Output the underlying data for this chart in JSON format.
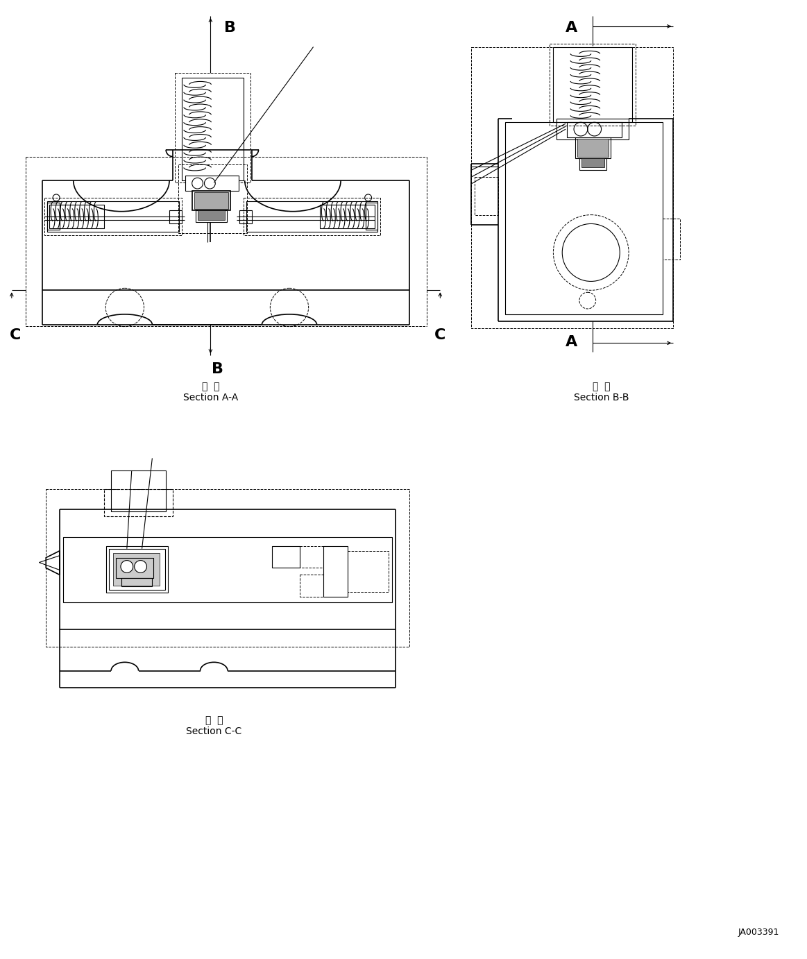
{
  "bg_color": "#ffffff",
  "line_color": "#000000",
  "dashed_color": "#000000",
  "fig_width": 11.63,
  "fig_height": 13.82,
  "dpi": 100,
  "section_aa_label": "断  面\nSection A-A",
  "section_bb_label": "断  面\nSection B-B",
  "section_cc_label": "断  面\nSection C-C",
  "ref_label": "JA003391",
  "label_A": "A",
  "label_B": "B",
  "label_C": "C"
}
